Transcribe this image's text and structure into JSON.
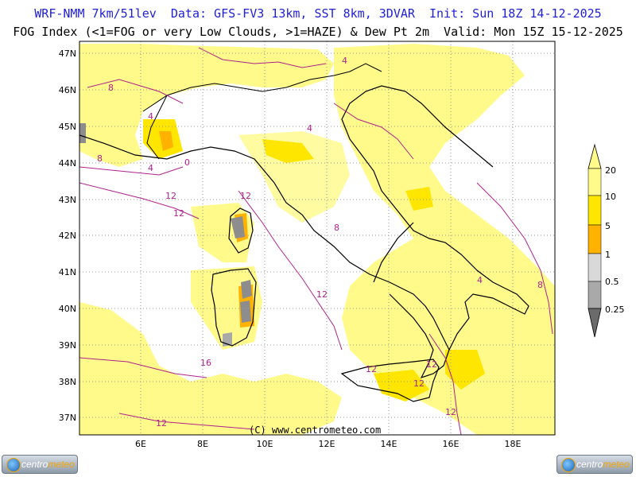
{
  "header": {
    "line1": "WRF-NMM 7km/51lev  Data: GFS-FV3 13km, SST 8km, 3DVAR  Init: Sun 18Z 14-12-2025",
    "line2": "FOG Index (<1=FOG or very Low Clouds, >1=HAZE) & Dew Pt 2m  Valid: Mon 15Z 15-12-2025"
  },
  "map": {
    "lat_labels": [
      "47N",
      "46N",
      "45N",
      "44N",
      "43N",
      "42N",
      "41N",
      "40N",
      "39N",
      "38N",
      "37N"
    ],
    "lon_labels": [
      "6E",
      "8E",
      "10E",
      "12E",
      "14E",
      "16E",
      "18E"
    ],
    "copyright": "(C) www.centrometeo.com",
    "contour_labels": [
      "8",
      "4",
      "0",
      "4",
      "4",
      "12",
      "12",
      "12",
      "12",
      "16",
      "12",
      "12",
      "8",
      "4",
      "8",
      "12",
      "12",
      "12",
      "8",
      "4"
    ]
  },
  "legend": {
    "labels": [
      "20",
      "10",
      "5",
      "1",
      "0.5",
      "0.25"
    ],
    "colors": [
      "#fffa8a",
      "#ffe600",
      "#ffb300",
      "#d9d9d9",
      "#a9a9a9",
      "#6b6b6b"
    ]
  },
  "logos": {
    "left_text_a": "centro",
    "left_text_b": "meteo",
    "right_text_a": "centro",
    "right_text_b": "meteo"
  }
}
